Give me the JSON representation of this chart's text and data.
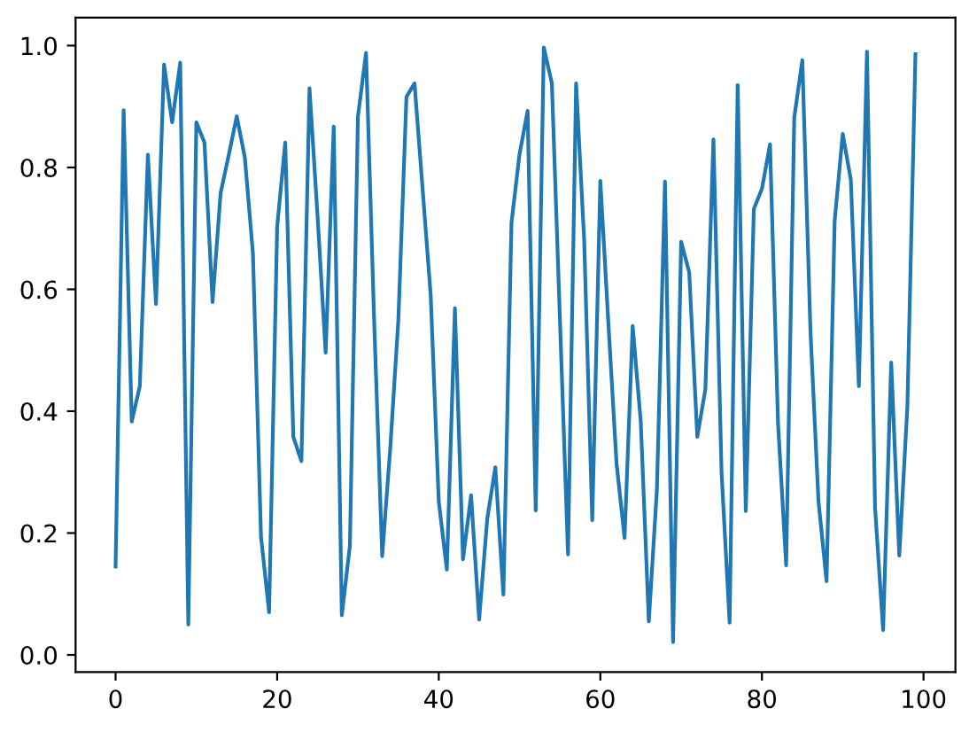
{
  "chart_data": {
    "type": "line",
    "x": [
      0,
      1,
      2,
      3,
      4,
      5,
      6,
      7,
      8,
      9,
      10,
      11,
      12,
      13,
      14,
      15,
      16,
      17,
      18,
      19,
      20,
      21,
      22,
      23,
      24,
      25,
      26,
      27,
      28,
      29,
      30,
      31,
      32,
      33,
      34,
      35,
      36,
      37,
      38,
      39,
      40,
      41,
      42,
      43,
      44,
      45,
      46,
      47,
      48,
      49,
      50,
      51,
      52,
      53,
      54,
      55,
      56,
      57,
      58,
      59,
      60,
      61,
      62,
      63,
      64,
      65,
      66,
      67,
      68,
      69,
      70,
      71,
      72,
      73,
      74,
      75,
      76,
      77,
      78,
      79,
      80,
      81,
      82,
      83,
      84,
      85,
      86,
      87,
      88,
      89,
      90,
      91,
      92,
      93,
      94,
      95,
      96,
      97,
      98,
      99
    ],
    "series": [
      {
        "color": "#1f77b4",
        "values": [
          0.145,
          0.894,
          0.383,
          0.441,
          0.821,
          0.576,
          0.969,
          0.874,
          0.972,
          0.05,
          0.874,
          0.841,
          0.579,
          0.758,
          0.82,
          0.884,
          0.816,
          0.659,
          0.194,
          0.07,
          0.703,
          0.841,
          0.358,
          0.318,
          0.93,
          0.72,
          0.496,
          0.867,
          0.065,
          0.179,
          0.884,
          0.988,
          0.55,
          0.162,
          0.34,
          0.55,
          0.916,
          0.938,
          0.765,
          0.591,
          0.252,
          0.14,
          0.569,
          0.157,
          0.262,
          0.058,
          0.223,
          0.308,
          0.099,
          0.709,
          0.822,
          0.893,
          0.237,
          0.997,
          0.938,
          0.55,
          0.165,
          0.938,
          0.68,
          0.221,
          0.778,
          0.543,
          0.315,
          0.192,
          0.54,
          0.383,
          0.055,
          0.271,
          0.777,
          0.021,
          0.678,
          0.628,
          0.358,
          0.436,
          0.846,
          0.3,
          0.053,
          0.935,
          0.236,
          0.732,
          0.765,
          0.838,
          0.378,
          0.147,
          0.882,
          0.976,
          0.533,
          0.252,
          0.121,
          0.712,
          0.855,
          0.78,
          0.441,
          0.99,
          0.242,
          0.041,
          0.48,
          0.163,
          0.407,
          0.986
        ]
      }
    ],
    "xlim": [
      -4.95,
      103.95
    ],
    "xticks": [
      0,
      20,
      40,
      60,
      80,
      100
    ],
    "ylim": [
      -0.028,
      1.046
    ],
    "yticks": [
      {
        "value": 0,
        "label": "0.0"
      },
      {
        "value": 0.2,
        "label": "0.2"
      },
      {
        "value": 0.4,
        "label": "0.4"
      },
      {
        "value": 0.6,
        "label": "0.6"
      },
      {
        "value": 0.8,
        "label": "0.8"
      },
      {
        "value": 1.0,
        "label": "1.0"
      }
    ],
    "grid": false,
    "marker": "none",
    "line_style": "solid"
  }
}
